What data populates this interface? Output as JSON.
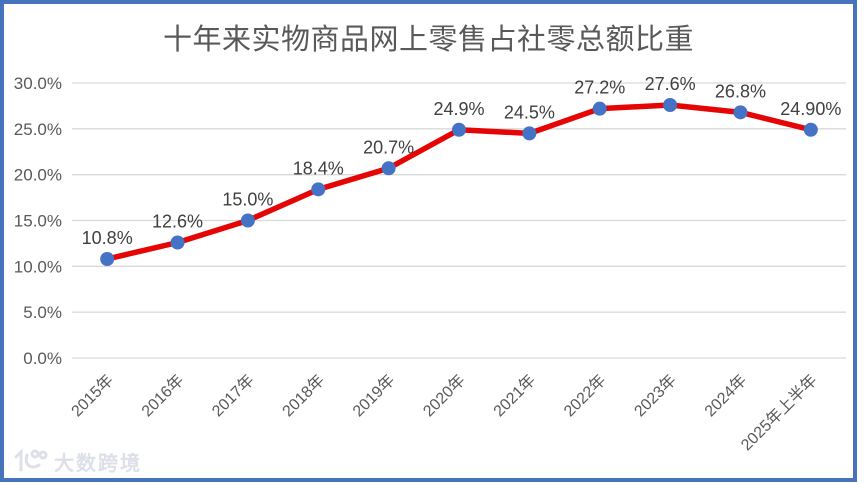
{
  "watermark": {
    "text": "大数跨境"
  },
  "chart_data": {
    "type": "line",
    "title": "十年来实物商品网上零售占社零总额比重",
    "categories": [
      "2015年",
      "2016年",
      "2017年",
      "2018年",
      "2019年",
      "2020年",
      "2021年",
      "2022年",
      "2023年",
      "2024年",
      "2025年上半年"
    ],
    "values": [
      10.8,
      12.6,
      15.0,
      18.4,
      20.7,
      24.9,
      24.5,
      27.2,
      27.6,
      26.8,
      24.9
    ],
    "point_labels": [
      "10.8%",
      "12.6%",
      "15.0%",
      "18.4%",
      "20.7%",
      "24.9%",
      "24.5%",
      "27.2%",
      "27.6%",
      "26.8%",
      "24.90%"
    ],
    "xlabel": "",
    "ylabel": "",
    "ylim": [
      0,
      30
    ],
    "ytick_step": 5,
    "ytick_labels": [
      "0.0%",
      "5.0%",
      "10.0%",
      "15.0%",
      "20.0%",
      "25.0%",
      "30.0%"
    ],
    "grid": true,
    "legend": "none",
    "x_tick_rotation_deg": 45,
    "colors": {
      "line": "#e60505",
      "marker": "#4472c4",
      "gridline": "#d9d9d9",
      "axis_text": "#595959",
      "point_label_text": "#404040",
      "title_text": "#595959",
      "frame_border": "#4673bb",
      "watermark": "#dde0e8"
    }
  }
}
